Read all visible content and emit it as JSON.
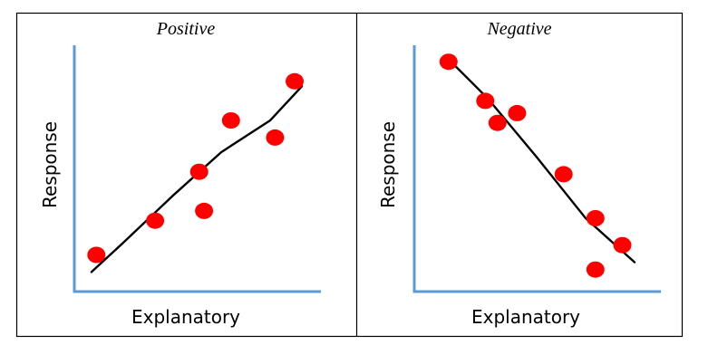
{
  "chart_data": [
    {
      "type": "scatter",
      "title": "Positive",
      "xlabel": "Explanatory",
      "ylabel": "Response",
      "grid": false,
      "point_color": "#ff0000",
      "axis_color": "#5b9bd5",
      "trend_color": "#000000",
      "xlim": [
        0,
        10
      ],
      "ylim": [
        0,
        10
      ],
      "points": [
        {
          "x": 0.9,
          "y": 1.5
        },
        {
          "x": 3.3,
          "y": 2.9
        },
        {
          "x": 5.1,
          "y": 4.9
        },
        {
          "x": 5.3,
          "y": 3.3
        },
        {
          "x": 6.4,
          "y": 7.0
        },
        {
          "x": 8.2,
          "y": 6.3
        },
        {
          "x": 9.0,
          "y": 8.6
        }
      ],
      "trend": [
        {
          "x": 0.7,
          "y": 0.8
        },
        {
          "x": 2.0,
          "y": 2.0
        },
        {
          "x": 4.0,
          "y": 3.9
        },
        {
          "x": 6.0,
          "y": 5.7
        },
        {
          "x": 8.0,
          "y": 7.0
        },
        {
          "x": 9.3,
          "y": 8.4
        }
      ]
    },
    {
      "type": "scatter",
      "title": "Negative",
      "xlabel": "Explanatory",
      "ylabel": "Response",
      "grid": false,
      "point_color": "#ff0000",
      "axis_color": "#5b9bd5",
      "trend_color": "#000000",
      "xlim": [
        0,
        10
      ],
      "ylim": [
        0,
        10
      ],
      "points": [
        {
          "x": 1.4,
          "y": 9.4
        },
        {
          "x": 2.9,
          "y": 7.8
        },
        {
          "x": 3.4,
          "y": 6.9
        },
        {
          "x": 4.2,
          "y": 7.3
        },
        {
          "x": 6.1,
          "y": 4.8
        },
        {
          "x": 7.4,
          "y": 3.0
        },
        {
          "x": 7.4,
          "y": 0.9
        },
        {
          "x": 8.5,
          "y": 1.9
        }
      ],
      "trend": [
        {
          "x": 1.4,
          "y": 9.5
        },
        {
          "x": 3.0,
          "y": 7.9
        },
        {
          "x": 5.0,
          "y": 5.5
        },
        {
          "x": 7.0,
          "y": 3.0
        },
        {
          "x": 9.0,
          "y": 1.2
        }
      ]
    }
  ]
}
